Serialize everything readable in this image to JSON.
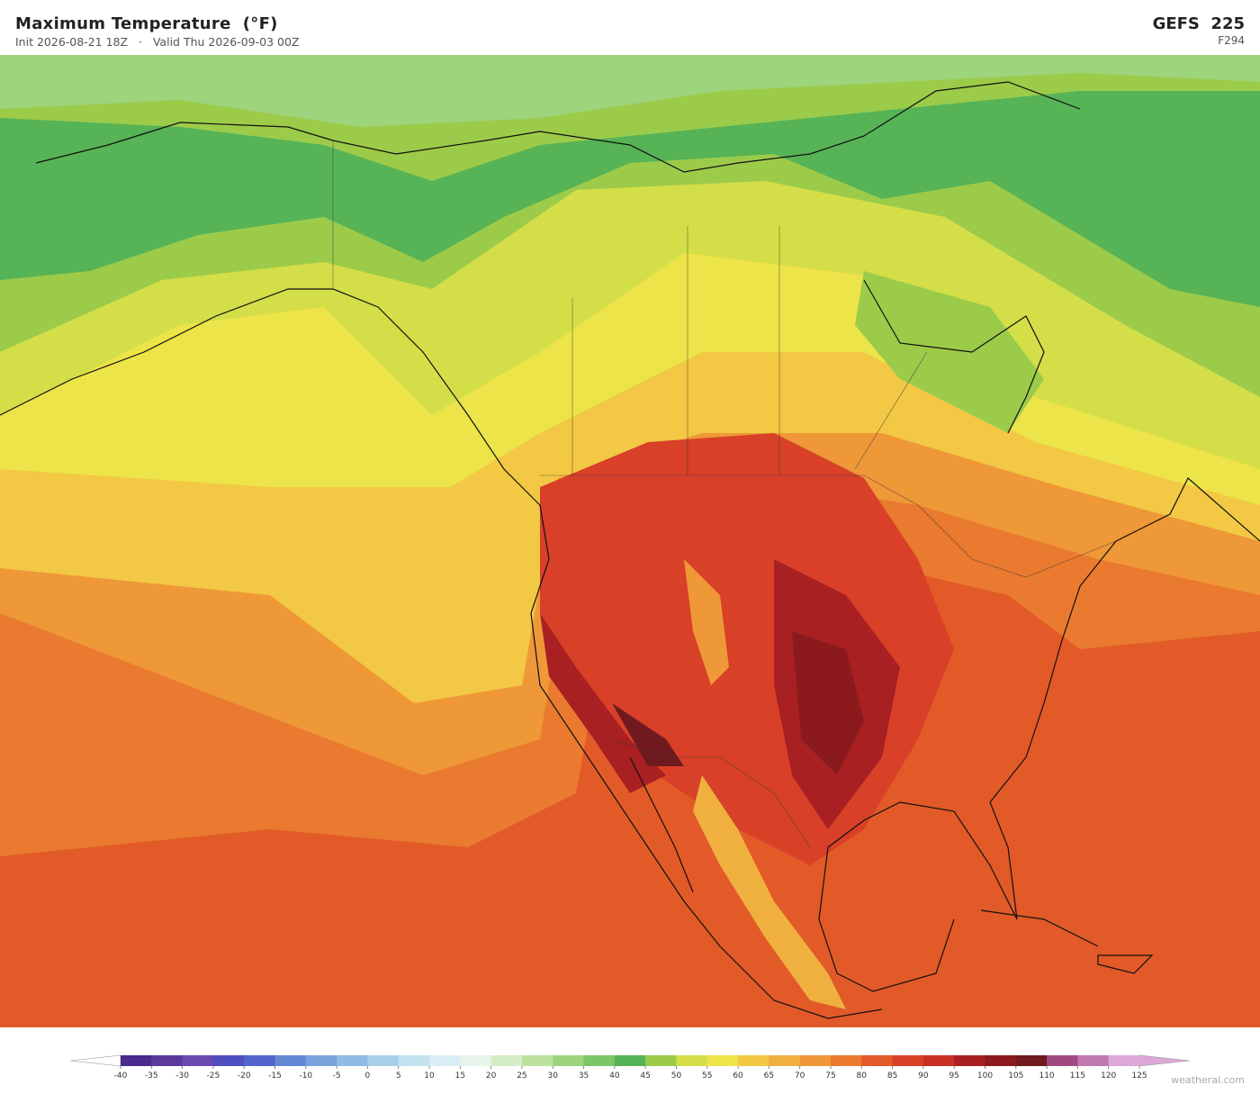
{
  "header": {
    "title": "Maximum Temperature  (°F)",
    "subtitle": "Init 2026-08-21 18Z   ·   Valid Thu 2026-09-03 00Z",
    "model": "GEFS  225",
    "forecast_hour": "F294"
  },
  "colorbar": {
    "ticks": [
      -40,
      -35,
      -30,
      -25,
      -20,
      -15,
      -10,
      -5,
      0,
      5,
      10,
      15,
      20,
      25,
      30,
      35,
      40,
      45,
      50,
      55,
      60,
      65,
      70,
      75,
      80,
      85,
      90,
      95,
      100,
      105,
      110,
      115,
      120,
      125
    ],
    "colors": [
      "#4a2a8c",
      "#5b3a9c",
      "#6a4ab0",
      "#4f4fc0",
      "#5466cc",
      "#6488d4",
      "#7aa3dc",
      "#8fbbe4",
      "#a8d0ea",
      "#c3e2f0",
      "#d9eef4",
      "#e8f5ea",
      "#d4edc8",
      "#bde2a0",
      "#9dd47c",
      "#7cc668",
      "#56b356",
      "#9ccb4a",
      "#d4de48",
      "#ece448",
      "#f2c844",
      "#f0b040",
      "#ef9838",
      "#ea7a30",
      "#e25a28",
      "#d84028",
      "#c83024",
      "#a82022",
      "#8c1a1c",
      "#701a20",
      "#a04a80",
      "#c07ab0",
      "#dca8d8"
    ],
    "under_color": "#ffffff",
    "over_color": "#dca8d8"
  },
  "footer": {
    "credit": "weatherai.com"
  }
}
